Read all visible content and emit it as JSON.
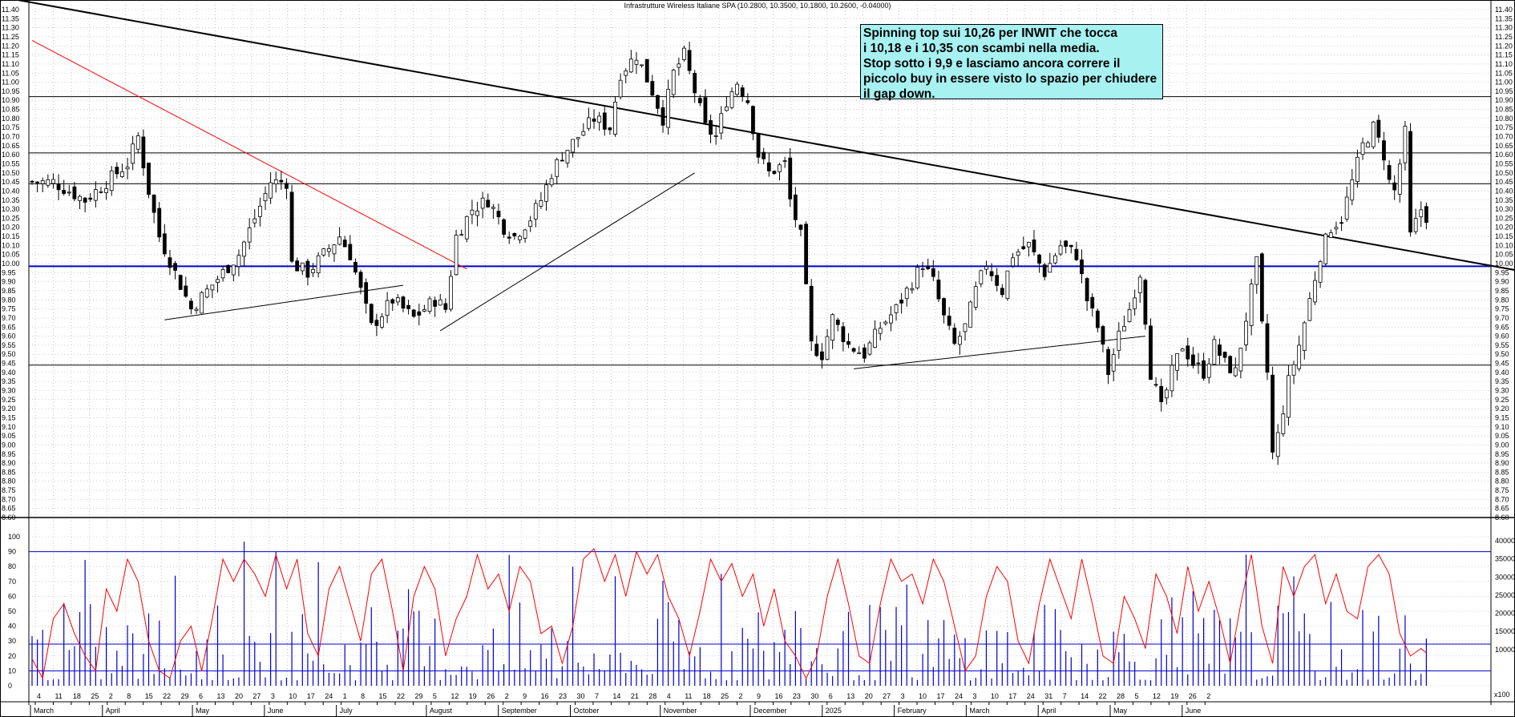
{
  "chart_data": {
    "type": "candlestick",
    "title": "Infrastrutture Wireless Italiane SPA (10.2800, 10.3500, 10.1800, 10.2600, -0.04000)",
    "annotation": [
      "Spinning top sui 10,26 per INWIT che tocca",
      "i 10,18 e i 10,35 con scambi nella media.",
      "Stop sotto i 9,9 e lasciamo ancora correre il",
      "piccolo buy in essere visto lo spazio per chiudere",
      "il gap down."
    ],
    "price_axis": {
      "min": 8.6,
      "max": 11.4,
      "step": 0.05,
      "ticks": [
        "8.60",
        "8.65",
        "8.70",
        "8.75",
        "8.80",
        "8.85",
        "8.90",
        "8.95",
        "9.00",
        "9.05",
        "9.10",
        "9.15",
        "9.20",
        "9.25",
        "9.30",
        "9.35",
        "9.40",
        "9.45",
        "9.50",
        "9.55",
        "9.60",
        "9.65",
        "9.70",
        "9.75",
        "9.80",
        "9.85",
        "9.90",
        "9.95",
        "10.00",
        "10.05",
        "10.10",
        "10.15",
        "10.20",
        "10.25",
        "10.30",
        "10.35",
        "10.40",
        "10.45",
        "10.50",
        "10.55",
        "10.60",
        "10.65",
        "10.70",
        "10.75",
        "10.80",
        "10.85",
        "10.90",
        "10.95",
        "11.00",
        "11.05",
        "11.10",
        "11.15",
        "11.20",
        "11.25",
        "11.30",
        "11.35",
        "11.40"
      ]
    },
    "oscillator_axis": {
      "min": 0,
      "max": 100,
      "ticks": [
        "0",
        "10",
        "20",
        "30",
        "40",
        "50",
        "60",
        "70",
        "80",
        "90",
        "100"
      ],
      "levels": [
        10,
        90
      ]
    },
    "volume_axis": {
      "min": 0,
      "max": 42000,
      "ticks": [
        "10000",
        "15000",
        "20000",
        "25000",
        "30000",
        "35000",
        "40000"
      ],
      "average": 11500,
      "unit_label": "x100"
    },
    "horizontal_levels": [
      {
        "value": 10.92,
        "color": "#000000"
      },
      {
        "value": 10.61,
        "color": "#000000"
      },
      {
        "value": 10.44,
        "color": "#000000"
      },
      {
        "value": 9.985,
        "color": "#0000cc"
      },
      {
        "value": 9.44,
        "color": "#000000"
      }
    ],
    "x_ticks": [
      "4",
      "11",
      "18",
      "25",
      "2",
      "8",
      "15",
      "22",
      "29",
      "6",
      "13",
      "20",
      "27",
      "3",
      "10",
      "17",
      "24",
      "1",
      "8",
      "15",
      "22",
      "29",
      "5",
      "12",
      "19",
      "26",
      "2",
      "9",
      "16",
      "23",
      "30",
      "7",
      "14",
      "21",
      "28",
      "4",
      "11",
      "18",
      "25",
      "2",
      "9",
      "16",
      "23",
      "30",
      "6",
      "13",
      "20",
      "27",
      "3",
      "10",
      "17",
      "24",
      "3",
      "10",
      "17",
      "24",
      "31",
      "7",
      "14",
      "22",
      "28",
      "5",
      "12",
      "19",
      "26",
      "2"
    ],
    "months": [
      {
        "label": "March",
        "tick": 0
      },
      {
        "label": "April",
        "tick": 4
      },
      {
        "label": "May",
        "tick": 9
      },
      {
        "label": "June",
        "tick": 13
      },
      {
        "label": "July",
        "tick": 17
      },
      {
        "label": "August",
        "tick": 22
      },
      {
        "label": "September",
        "tick": 26
      },
      {
        "label": "October",
        "tick": 30
      },
      {
        "label": "November",
        "tick": 35
      },
      {
        "label": "December",
        "tick": 40
      },
      {
        "label": "2025",
        "tick": 44
      },
      {
        "label": "February",
        "tick": 48
      },
      {
        "label": "March",
        "tick": 52
      },
      {
        "label": "April",
        "tick": 56
      },
      {
        "label": "May",
        "tick": 60
      },
      {
        "label": "June",
        "tick": 64
      }
    ],
    "trendlines": [
      {
        "from": [
          -4,
          11.46
        ],
        "to": [
          328,
          9.71
        ],
        "color": "#000000",
        "width": 2
      },
      {
        "from": [
          0,
          11.23
        ],
        "to": [
          82,
          9.97
        ],
        "color": "#ff0000",
        "width": 1
      },
      {
        "from": [
          25,
          9.69
        ],
        "to": [
          70,
          9.88
        ],
        "color": "#000000",
        "width": 1
      },
      {
        "from": [
          77,
          9.63
        ],
        "to": [
          125,
          10.5
        ],
        "color": "#000000",
        "width": 1
      },
      {
        "from": [
          155,
          9.42
        ],
        "to": [
          210,
          9.6
        ],
        "color": "#000000",
        "width": 1
      }
    ],
    "price_anchors": [
      [
        0,
        10.45
      ],
      [
        4,
        10.45
      ],
      [
        10,
        10.35
      ],
      [
        14,
        10.45
      ],
      [
        18,
        10.55
      ],
      [
        20,
        10.7
      ],
      [
        22,
        10.4
      ],
      [
        24,
        10.15
      ],
      [
        27,
        9.95
      ],
      [
        30,
        9.75
      ],
      [
        33,
        9.85
      ],
      [
        36,
        9.95
      ],
      [
        39,
        10.05
      ],
      [
        42,
        10.25
      ],
      [
        45,
        10.45
      ],
      [
        48,
        10.45
      ],
      [
        49,
        10.0
      ],
      [
        52,
        9.95
      ],
      [
        55,
        10.05
      ],
      [
        58,
        10.15
      ],
      [
        60,
        10.05
      ],
      [
        62,
        9.85
      ],
      [
        64,
        9.65
      ],
      [
        68,
        9.8
      ],
      [
        72,
        9.7
      ],
      [
        76,
        9.8
      ],
      [
        78,
        9.75
      ],
      [
        80,
        10.15
      ],
      [
        83,
        10.3
      ],
      [
        86,
        10.35
      ],
      [
        89,
        10.2
      ],
      [
        91,
        10.15
      ],
      [
        94,
        10.25
      ],
      [
        96,
        10.35
      ],
      [
        98,
        10.5
      ],
      [
        100,
        10.6
      ],
      [
        103,
        10.7
      ],
      [
        106,
        10.8
      ],
      [
        109,
        10.75
      ],
      [
        111,
        11.05
      ],
      [
        114,
        11.15
      ],
      [
        117,
        10.95
      ],
      [
        119,
        10.8
      ],
      [
        121,
        11.05
      ],
      [
        123,
        11.15
      ],
      [
        125,
        10.95
      ],
      [
        127,
        10.75
      ],
      [
        129,
        10.7
      ],
      [
        131,
        10.9
      ],
      [
        133,
        11.0
      ],
      [
        135,
        10.9
      ],
      [
        137,
        10.6
      ],
      [
        139,
        10.5
      ],
      [
        142,
        10.55
      ],
      [
        143,
        10.35
      ],
      [
        144,
        10.25
      ],
      [
        145,
        10.15
      ],
      [
        147,
        9.55
      ],
      [
        149,
        9.5
      ],
      [
        151,
        9.7
      ],
      [
        154,
        9.55
      ],
      [
        157,
        9.5
      ],
      [
        160,
        9.65
      ],
      [
        163,
        9.75
      ],
      [
        166,
        9.9
      ],
      [
        168,
        10.0
      ],
      [
        170,
        9.9
      ],
      [
        172,
        9.7
      ],
      [
        174,
        9.55
      ],
      [
        176,
        9.65
      ],
      [
        178,
        9.85
      ],
      [
        180,
        10.0
      ],
      [
        183,
        9.85
      ],
      [
        185,
        10.05
      ],
      [
        188,
        10.1
      ],
      [
        191,
        9.95
      ],
      [
        194,
        10.1
      ],
      [
        197,
        10.05
      ],
      [
        199,
        9.8
      ],
      [
        201,
        9.65
      ],
      [
        203,
        9.4
      ],
      [
        205,
        9.6
      ],
      [
        207,
        9.75
      ],
      [
        209,
        9.95
      ],
      [
        210,
        9.7
      ],
      [
        211,
        9.4
      ],
      [
        213,
        9.2
      ],
      [
        215,
        9.4
      ],
      [
        217,
        9.55
      ],
      [
        219,
        9.45
      ],
      [
        221,
        9.4
      ],
      [
        223,
        9.55
      ],
      [
        225,
        9.45
      ],
      [
        227,
        9.4
      ],
      [
        229,
        9.7
      ],
      [
        231,
        10.0
      ],
      [
        232,
        9.65
      ],
      [
        233,
        9.4
      ],
      [
        234,
        8.95
      ],
      [
        235,
        9.05
      ],
      [
        237,
        9.35
      ],
      [
        239,
        9.55
      ],
      [
        241,
        9.8
      ],
      [
        243,
        10.05
      ],
      [
        245,
        10.2
      ],
      [
        247,
        10.25
      ],
      [
        249,
        10.45
      ],
      [
        251,
        10.65
      ],
      [
        253,
        10.75
      ],
      [
        255,
        10.6
      ],
      [
        256,
        10.45
      ],
      [
        257,
        10.4
      ],
      [
        258,
        10.55
      ],
      [
        259,
        10.72
      ],
      [
        260,
        10.15
      ],
      [
        262,
        10.3
      ],
      [
        263,
        10.26
      ]
    ],
    "oscillator_anchors": [
      [
        0,
        18
      ],
      [
        2,
        5
      ],
      [
        4,
        45
      ],
      [
        6,
        55
      ],
      [
        8,
        35
      ],
      [
        10,
        20
      ],
      [
        12,
        10
      ],
      [
        14,
        65
      ],
      [
        16,
        50
      ],
      [
        18,
        85
      ],
      [
        20,
        70
      ],
      [
        22,
        30
      ],
      [
        24,
        10
      ],
      [
        26,
        5
      ],
      [
        28,
        30
      ],
      [
        30,
        40
      ],
      [
        32,
        10
      ],
      [
        34,
        45
      ],
      [
        36,
        85
      ],
      [
        38,
        70
      ],
      [
        40,
        85
      ],
      [
        42,
        75
      ],
      [
        44,
        60
      ],
      [
        46,
        88
      ],
      [
        48,
        65
      ],
      [
        50,
        85
      ],
      [
        52,
        35
      ],
      [
        54,
        20
      ],
      [
        56,
        65
      ],
      [
        58,
        80
      ],
      [
        60,
        55
      ],
      [
        62,
        30
      ],
      [
        64,
        75
      ],
      [
        66,
        85
      ],
      [
        68,
        50
      ],
      [
        70,
        10
      ],
      [
        72,
        60
      ],
      [
        74,
        80
      ],
      [
        76,
        65
      ],
      [
        78,
        20
      ],
      [
        80,
        45
      ],
      [
        82,
        60
      ],
      [
        84,
        88
      ],
      [
        86,
        65
      ],
      [
        88,
        75
      ],
      [
        90,
        50
      ],
      [
        92,
        80
      ],
      [
        94,
        70
      ],
      [
        96,
        35
      ],
      [
        98,
        40
      ],
      [
        100,
        15
      ],
      [
        102,
        40
      ],
      [
        104,
        85
      ],
      [
        106,
        92
      ],
      [
        108,
        70
      ],
      [
        110,
        88
      ],
      [
        112,
        60
      ],
      [
        114,
        90
      ],
      [
        116,
        75
      ],
      [
        118,
        88
      ],
      [
        120,
        60
      ],
      [
        122,
        45
      ],
      [
        124,
        20
      ],
      [
        126,
        50
      ],
      [
        128,
        85
      ],
      [
        130,
        70
      ],
      [
        132,
        82
      ],
      [
        134,
        60
      ],
      [
        136,
        75
      ],
      [
        138,
        40
      ],
      [
        140,
        65
      ],
      [
        142,
        30
      ],
      [
        144,
        20
      ],
      [
        146,
        5
      ],
      [
        148,
        20
      ],
      [
        150,
        60
      ],
      [
        152,
        85
      ],
      [
        154,
        55
      ],
      [
        156,
        20
      ],
      [
        158,
        15
      ],
      [
        160,
        55
      ],
      [
        162,
        85
      ],
      [
        164,
        70
      ],
      [
        166,
        75
      ],
      [
        168,
        55
      ],
      [
        170,
        85
      ],
      [
        172,
        70
      ],
      [
        174,
        40
      ],
      [
        176,
        10
      ],
      [
        178,
        20
      ],
      [
        180,
        60
      ],
      [
        182,
        80
      ],
      [
        184,
        70
      ],
      [
        186,
        30
      ],
      [
        188,
        15
      ],
      [
        190,
        55
      ],
      [
        192,
        85
      ],
      [
        194,
        65
      ],
      [
        196,
        45
      ],
      [
        198,
        85
      ],
      [
        200,
        55
      ],
      [
        202,
        20
      ],
      [
        204,
        15
      ],
      [
        206,
        60
      ],
      [
        208,
        45
      ],
      [
        210,
        25
      ],
      [
        212,
        75
      ],
      [
        214,
        60
      ],
      [
        216,
        35
      ],
      [
        218,
        80
      ],
      [
        220,
        50
      ],
      [
        222,
        70
      ],
      [
        224,
        45
      ],
      [
        226,
        15
      ],
      [
        228,
        55
      ],
      [
        230,
        88
      ],
      [
        232,
        40
      ],
      [
        234,
        15
      ],
      [
        236,
        80
      ],
      [
        238,
        60
      ],
      [
        240,
        80
      ],
      [
        242,
        88
      ],
      [
        244,
        55
      ],
      [
        246,
        75
      ],
      [
        248,
        50
      ],
      [
        250,
        45
      ],
      [
        252,
        80
      ],
      [
        254,
        88
      ],
      [
        256,
        75
      ],
      [
        258,
        35
      ],
      [
        260,
        20
      ],
      [
        262,
        25
      ],
      [
        263,
        22
      ]
    ]
  }
}
